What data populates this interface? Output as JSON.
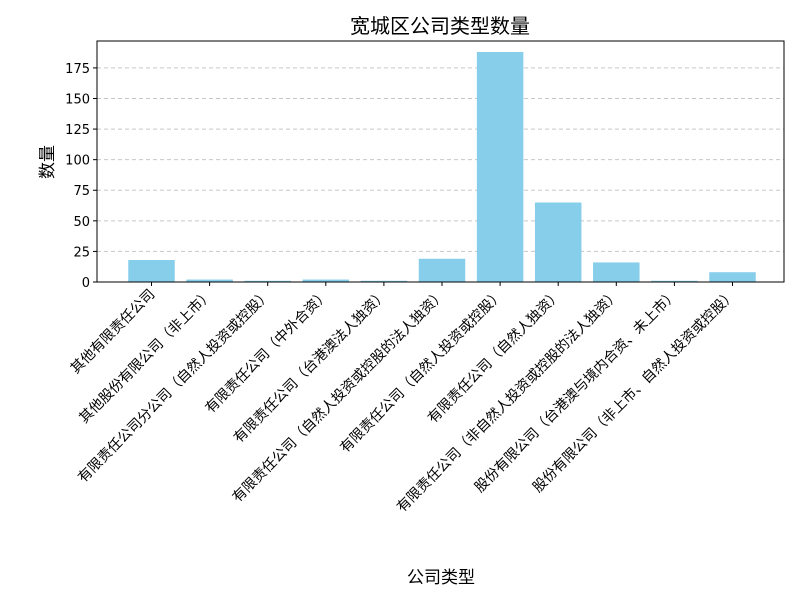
{
  "chart_data": {
    "type": "bar",
    "title": "宽城区公司类型数量",
    "xlabel": "公司类型",
    "ylabel": "数量",
    "categories": [
      "其他有限责任公司",
      "其他股份有限公司（非上市）",
      "有限责任公司分公司（自然人投资或控股）",
      "有限责任公司（中外合资）",
      "有限责任公司（台港澳法人独资）",
      "有限责任公司（自然人投资或控股的法人独资）",
      "有限责任公司（自然人投资或控股）",
      "有限责任公司（自然人独资）",
      "有限责任公司（非自然人投资或控股的法人独资）",
      "股份有限公司（台港澳与境内合资、未上市）",
      "股份有限公司（非上市、自然人投资或控股）"
    ],
    "values": [
      18,
      2,
      1,
      2,
      1,
      19,
      188,
      65,
      16,
      1,
      8
    ],
    "ylim": [
      0,
      197
    ],
    "yticks": [
      0,
      25,
      50,
      75,
      100,
      125,
      150,
      175
    ],
    "grid": "y-dashed",
    "colors": {
      "bar": "#87ceeb",
      "grid": "#c8c8c8",
      "axis": "#000000"
    }
  }
}
